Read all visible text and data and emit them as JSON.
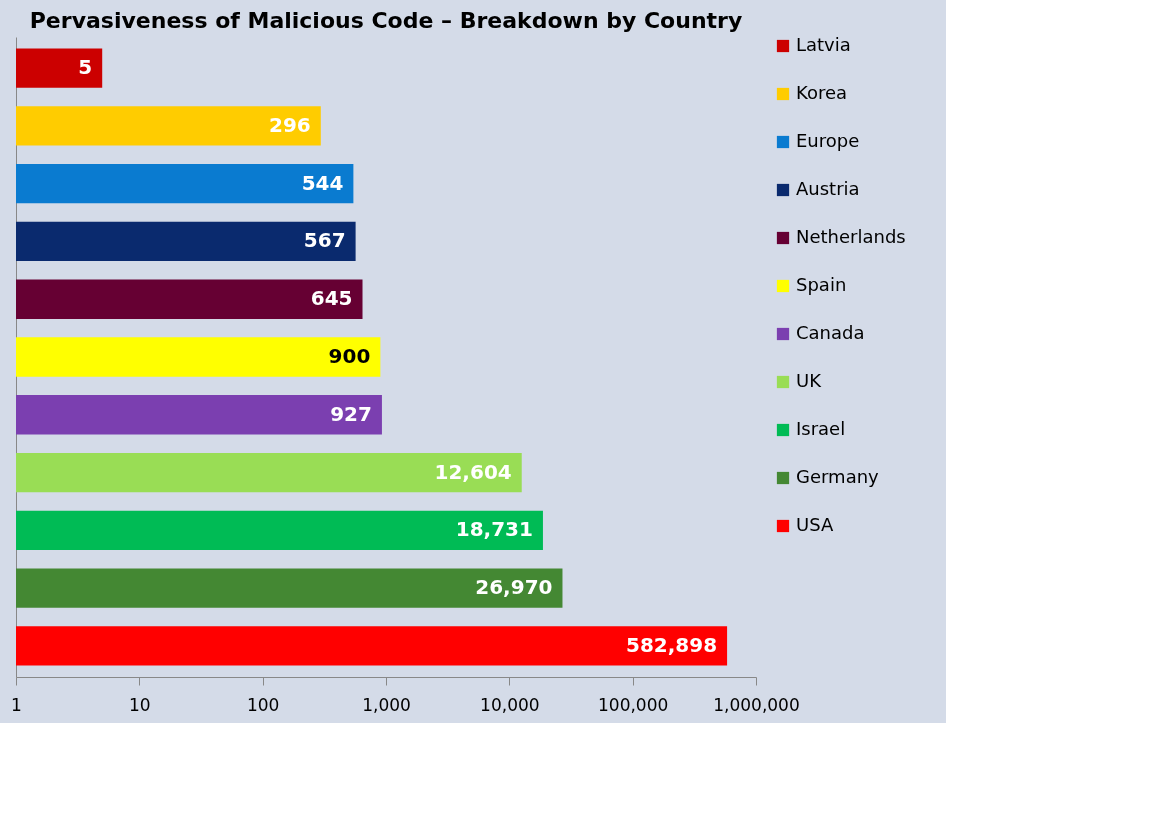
{
  "chart_data": {
    "type": "bar",
    "orientation": "horizontal",
    "log": "x",
    "title": "Pervasiveness of Malicious Code – Breakdown by Country",
    "categories": [
      null,
      null,
      null,
      null,
      null,
      null,
      null,
      null,
      null,
      null,
      null
    ],
    "series": [
      {
        "name": "Latvia",
        "color": "#cc0000",
        "values": [
          5,
          null,
          null,
          null,
          null,
          null,
          null,
          null,
          null,
          null,
          null
        ],
        "value_labels": [
          "5",
          null,
          null,
          null,
          null,
          null,
          null,
          null,
          null,
          null,
          null
        ]
      },
      {
        "name": "Korea",
        "color": "#ffcc00",
        "values": [
          null,
          296,
          null,
          null,
          null,
          null,
          null,
          null,
          null,
          null,
          null
        ],
        "value_labels": [
          null,
          "296",
          null,
          null,
          null,
          null,
          null,
          null,
          null,
          null,
          null
        ]
      },
      {
        "name": "Europe",
        "color": "#0a7bd0",
        "values": [
          null,
          null,
          544,
          null,
          null,
          null,
          null,
          null,
          null,
          null,
          null
        ],
        "value_labels": [
          null,
          null,
          "544",
          null,
          null,
          null,
          null,
          null,
          null,
          null,
          null
        ]
      },
      {
        "name": "Austria",
        "color": "#0a2a6e",
        "values": [
          null,
          null,
          null,
          567,
          null,
          null,
          null,
          null,
          null,
          null,
          null
        ],
        "value_labels": [
          null,
          null,
          null,
          "567",
          null,
          null,
          null,
          null,
          null,
          null,
          null
        ]
      },
      {
        "name": "Netherlands",
        "color": "#660033",
        "values": [
          null,
          null,
          null,
          null,
          645,
          null,
          null,
          null,
          null,
          null,
          null
        ],
        "value_labels": [
          null,
          null,
          null,
          null,
          "645",
          null,
          null,
          null,
          null,
          null,
          null
        ]
      },
      {
        "name": "Spain",
        "color": "#ffff00",
        "values": [
          null,
          null,
          null,
          null,
          null,
          900,
          null,
          null,
          null,
          null,
          null
        ],
        "value_labels": [
          null,
          null,
          null,
          null,
          null,
          "900",
          null,
          null,
          null,
          null,
          null
        ]
      },
      {
        "name": "Canada",
        "color": "#7b3fb0",
        "values": [
          null,
          null,
          null,
          null,
          null,
          null,
          927,
          null,
          null,
          null,
          null
        ],
        "value_labels": [
          null,
          null,
          null,
          null,
          null,
          null,
          "927",
          null,
          null,
          null,
          null
        ]
      },
      {
        "name": "UK",
        "color": "#99dd55",
        "values": [
          null,
          null,
          null,
          null,
          null,
          null,
          null,
          12604,
          null,
          null,
          null
        ],
        "value_labels": [
          null,
          null,
          null,
          null,
          null,
          null,
          null,
          "12,604",
          null,
          null,
          null
        ]
      },
      {
        "name": "Israel",
        "color": "#00bb55",
        "values": [
          null,
          null,
          null,
          null,
          null,
          null,
          null,
          null,
          18731,
          null,
          null
        ],
        "value_labels": [
          null,
          null,
          null,
          null,
          null,
          null,
          null,
          null,
          "18,731",
          null,
          null
        ]
      },
      {
        "name": "Germany",
        "color": "#448833",
        "values": [
          null,
          null,
          null,
          null,
          null,
          null,
          null,
          null,
          null,
          26970,
          null
        ],
        "value_labels": [
          null,
          null,
          null,
          null,
          null,
          null,
          null,
          null,
          null,
          "26,970",
          null
        ]
      },
      {
        "name": "USA",
        "color": "#ff0000",
        "values": [
          null,
          null,
          null,
          null,
          null,
          null,
          null,
          null,
          null,
          null,
          582898
        ],
        "value_labels": [
          null,
          null,
          null,
          null,
          null,
          null,
          null,
          null,
          null,
          null,
          "582,898"
        ]
      }
    ],
    "xlim": [
      1,
      1000000
    ],
    "xticks": [
      1,
      10,
      100,
      {
        "value": 1000,
        "label": "1,000"
      },
      {
        "value": 10000,
        "label": "10,000"
      },
      {
        "value": 100000,
        "label": "100,000"
      },
      {
        "value": 1000000,
        "label": "1,000,000"
      }
    ],
    "legend": "right",
    "grid": false,
    "tick_labels": "x"
  }
}
